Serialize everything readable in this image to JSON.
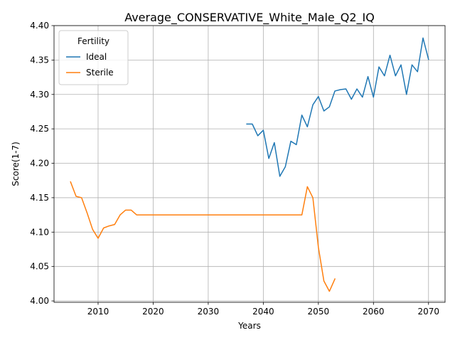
{
  "chart_data": {
    "type": "line",
    "title": "Average_CONSERVATIVE_White_Male_Q2_IQ",
    "xlabel": "Years",
    "ylabel": "Score(1-7)",
    "xlim": [
      2002,
      2073
    ],
    "ylim": [
      3.998,
      4.4
    ],
    "xticks": [
      2010,
      2020,
      2030,
      2040,
      2050,
      2060,
      2070
    ],
    "xtick_labels": [
      "2010",
      "2020",
      "2030",
      "2040",
      "2050",
      "2060",
      "2070"
    ],
    "yticks": [
      4.0,
      4.05,
      4.1,
      4.15,
      4.2,
      4.25,
      4.3,
      4.35,
      4.4
    ],
    "ytick_labels": [
      "4.00",
      "4.05",
      "4.10",
      "4.15",
      "4.20",
      "4.25",
      "4.30",
      "4.35",
      "4.40"
    ],
    "grid": true,
    "legend": {
      "title": "Fertility",
      "placement": "top-left"
    },
    "series": [
      {
        "name": "Ideal",
        "color": "#1f77b4",
        "x": [
          2037,
          2038,
          2039,
          2040,
          2041,
          2042,
          2043,
          2044,
          2045,
          2046,
          2047,
          2048,
          2049,
          2050,
          2051,
          2052,
          2053,
          2054,
          2055,
          2056,
          2057,
          2058,
          2059,
          2060,
          2061,
          2062,
          2063,
          2064,
          2065,
          2066,
          2067,
          2068,
          2069,
          2070
        ],
        "y": [
          4.257,
          4.257,
          4.24,
          4.248,
          4.207,
          4.23,
          4.181,
          4.195,
          4.232,
          4.227,
          4.27,
          4.253,
          4.285,
          4.297,
          4.276,
          4.282,
          4.305,
          4.307,
          4.308,
          4.293,
          4.308,
          4.296,
          4.326,
          4.296,
          4.34,
          4.327,
          4.357,
          4.327,
          4.343,
          4.3,
          4.343,
          4.333,
          4.382,
          4.351
        ]
      },
      {
        "name": "Sterile",
        "color": "#ff7f0e",
        "x": [
          2005,
          2006,
          2007,
          2008,
          2009,
          2010,
          2011,
          2012,
          2013,
          2014,
          2015,
          2016,
          2017,
          2018,
          2019,
          2020,
          2021,
          2022,
          2023,
          2024,
          2025,
          2026,
          2027,
          2028,
          2029,
          2030,
          2031,
          2032,
          2033,
          2034,
          2035,
          2036,
          2037,
          2038,
          2039,
          2040,
          2041,
          2042,
          2043,
          2044,
          2045,
          2046,
          2047,
          2048,
          2049,
          2050,
          2051,
          2052,
          2053
        ],
        "y": [
          4.173,
          4.152,
          4.15,
          4.128,
          4.104,
          4.091,
          4.106,
          4.109,
          4.111,
          4.125,
          4.132,
          4.132,
          4.125,
          4.125,
          4.125,
          4.125,
          4.125,
          4.125,
          4.125,
          4.125,
          4.125,
          4.125,
          4.125,
          4.125,
          4.125,
          4.125,
          4.125,
          4.125,
          4.125,
          4.125,
          4.125,
          4.125,
          4.125,
          4.125,
          4.125,
          4.125,
          4.125,
          4.125,
          4.125,
          4.125,
          4.125,
          4.125,
          4.125,
          4.166,
          4.15,
          4.078,
          4.029,
          4.014,
          4.032
        ]
      }
    ]
  }
}
